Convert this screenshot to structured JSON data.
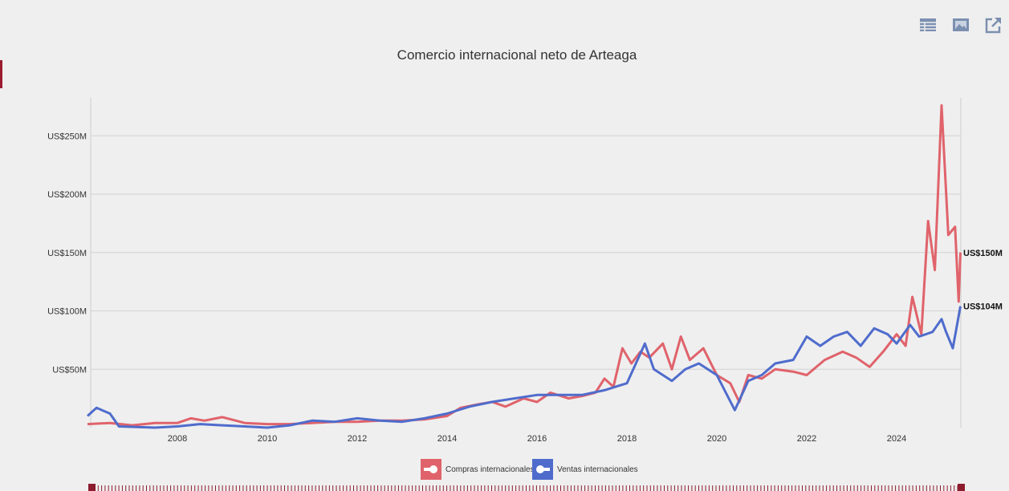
{
  "toolbar": {
    "icons": [
      "table-icon",
      "image-icon",
      "external-link-icon"
    ]
  },
  "chart_data": {
    "type": "line",
    "title": "Comercio internacional neto de Arteaga",
    "xlabel": "",
    "ylabel": "",
    "xlim": [
      2006.0,
      2025.42
    ],
    "ylim": [
      0,
      280
    ],
    "x_ticks": [
      {
        "v": 2008,
        "label": "2008"
      },
      {
        "v": 2010,
        "label": "2010"
      },
      {
        "v": 2012,
        "label": "2012"
      },
      {
        "v": 2014,
        "label": "2014"
      },
      {
        "v": 2016,
        "label": "2016"
      },
      {
        "v": 2018,
        "label": "2018"
      },
      {
        "v": 2020,
        "label": "2020"
      },
      {
        "v": 2022,
        "label": "2022"
      },
      {
        "v": 2024,
        "label": "2024"
      }
    ],
    "y_ticks": [
      {
        "v": 50,
        "label": "US$50M"
      },
      {
        "v": 100,
        "label": "US$100M"
      },
      {
        "v": 150,
        "label": "US$150M"
      },
      {
        "v": 200,
        "label": "US$200M"
      },
      {
        "v": 250,
        "label": "US$250M"
      }
    ],
    "grid": true,
    "legend_position": "bottom",
    "series": [
      {
        "name": "Compras internacionales",
        "color": "#e0636b",
        "end_label": "US$150M",
        "points": [
          [
            2006.0,
            3
          ],
          [
            2006.5,
            4
          ],
          [
            2007,
            2
          ],
          [
            2007.5,
            4
          ],
          [
            2008,
            4
          ],
          [
            2008.3,
            8
          ],
          [
            2008.6,
            6
          ],
          [
            2009,
            9
          ],
          [
            2009.5,
            4
          ],
          [
            2010,
            3
          ],
          [
            2010.5,
            3
          ],
          [
            2011,
            4
          ],
          [
            2011.5,
            5
          ],
          [
            2012,
            5
          ],
          [
            2012.5,
            6
          ],
          [
            2013,
            6
          ],
          [
            2013.5,
            7
          ],
          [
            2014,
            10
          ],
          [
            2014.3,
            17
          ],
          [
            2014.7,
            20
          ],
          [
            2015,
            22
          ],
          [
            2015.3,
            18
          ],
          [
            2015.7,
            25
          ],
          [
            2016,
            22
          ],
          [
            2016.3,
            30
          ],
          [
            2016.7,
            25
          ],
          [
            2017,
            27
          ],
          [
            2017.3,
            30
          ],
          [
            2017.5,
            42
          ],
          [
            2017.7,
            35
          ],
          [
            2017.9,
            68
          ],
          [
            2018.1,
            55
          ],
          [
            2018.3,
            65
          ],
          [
            2018.5,
            60
          ],
          [
            2018.8,
            72
          ],
          [
            2019,
            50
          ],
          [
            2019.2,
            78
          ],
          [
            2019.4,
            58
          ],
          [
            2019.7,
            68
          ],
          [
            2020,
            45
          ],
          [
            2020.3,
            38
          ],
          [
            2020.5,
            22
          ],
          [
            2020.7,
            45
          ],
          [
            2021,
            42
          ],
          [
            2021.3,
            50
          ],
          [
            2021.7,
            48
          ],
          [
            2022,
            45
          ],
          [
            2022.4,
            58
          ],
          [
            2022.8,
            65
          ],
          [
            2023.1,
            60
          ],
          [
            2023.4,
            52
          ],
          [
            2023.7,
            65
          ],
          [
            2024,
            80
          ],
          [
            2024.2,
            70
          ],
          [
            2024.35,
            112
          ],
          [
            2024.55,
            80
          ],
          [
            2024.7,
            177
          ],
          [
            2024.85,
            135
          ],
          [
            2025.0,
            276
          ],
          [
            2025.15,
            165
          ],
          [
            2025.3,
            172
          ],
          [
            2025.38,
            108
          ],
          [
            2025.42,
            150
          ]
        ]
      },
      {
        "name": "Ventas internacionales",
        "color": "#4f6ccc",
        "end_label": "US$104M",
        "points": [
          [
            2006.0,
            10
          ],
          [
            2006.2,
            17
          ],
          [
            2006.5,
            12
          ],
          [
            2006.7,
            1
          ],
          [
            2007.5,
            0
          ],
          [
            2008,
            1
          ],
          [
            2008.5,
            3
          ],
          [
            2009,
            2
          ],
          [
            2009.5,
            1
          ],
          [
            2010,
            0
          ],
          [
            2010.5,
            2
          ],
          [
            2011,
            6
          ],
          [
            2011.5,
            5
          ],
          [
            2012,
            8
          ],
          [
            2012.5,
            6
          ],
          [
            2013,
            5
          ],
          [
            2013.5,
            8
          ],
          [
            2014,
            12
          ],
          [
            2014.5,
            18
          ],
          [
            2015,
            22
          ],
          [
            2015.5,
            25
          ],
          [
            2016,
            28
          ],
          [
            2016.5,
            28
          ],
          [
            2017,
            28
          ],
          [
            2017.5,
            32
          ],
          [
            2018,
            38
          ],
          [
            2018.4,
            72
          ],
          [
            2018.6,
            50
          ],
          [
            2019,
            40
          ],
          [
            2019.3,
            50
          ],
          [
            2019.6,
            55
          ],
          [
            2020,
            45
          ],
          [
            2020.4,
            15
          ],
          [
            2020.7,
            40
          ],
          [
            2021,
            45
          ],
          [
            2021.3,
            55
          ],
          [
            2021.7,
            58
          ],
          [
            2022,
            78
          ],
          [
            2022.3,
            70
          ],
          [
            2022.6,
            78
          ],
          [
            2022.9,
            82
          ],
          [
            2023.2,
            70
          ],
          [
            2023.5,
            85
          ],
          [
            2023.8,
            80
          ],
          [
            2024,
            72
          ],
          [
            2024.3,
            88
          ],
          [
            2024.5,
            78
          ],
          [
            2024.8,
            82
          ],
          [
            2025.0,
            93
          ],
          [
            2025.1,
            82
          ],
          [
            2025.25,
            68
          ],
          [
            2025.42,
            104
          ]
        ]
      }
    ]
  }
}
